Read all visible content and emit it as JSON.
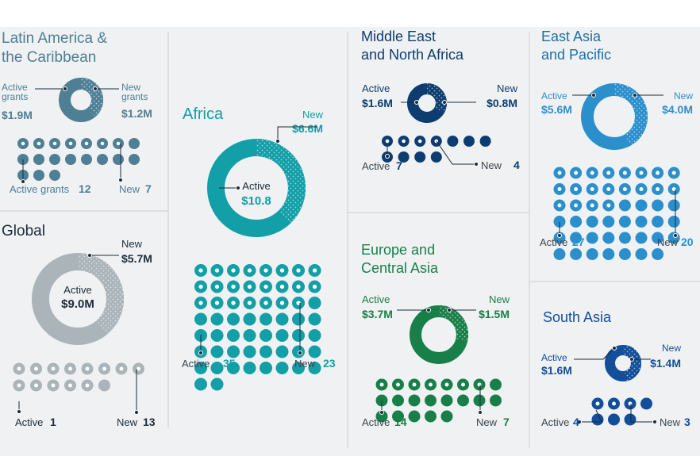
{
  "colors": {
    "background": "#eff1f2",
    "divider": "#d7dbde",
    "latam": "#4f7f95",
    "global": "#aab4b9",
    "africa": "#129fa8",
    "mena": "#0d3d70",
    "europe": "#197f49",
    "eap": "#2b8fcc",
    "eap_dark": "#1d6fa8",
    "sa": "#124e9a",
    "label_dark": "#1d2b3a",
    "label_grey": "#3b4650"
  },
  "chart_data": [
    {
      "type": "pie",
      "id": "latam",
      "title_lines": [
        "Latin America &",
        "the Caribbean"
      ],
      "slices": [
        {
          "name": "Active grants",
          "value": 1.9,
          "display": "$1.9M",
          "label_lines": [
            "Active",
            "grants"
          ]
        },
        {
          "name": "New grants",
          "value": 1.2,
          "display": "$1.2M",
          "label_lines": [
            "New",
            "grants"
          ]
        }
      ],
      "counts": {
        "active": 12,
        "new": 7,
        "active_label": "Active grants",
        "new_label": "New"
      }
    },
    {
      "type": "pie",
      "id": "global",
      "title_lines": [
        "Global"
      ],
      "slices": [
        {
          "name": "Active",
          "value": 9.0,
          "display": "$9.0M",
          "label_lines": [
            "Active"
          ]
        },
        {
          "name": "New",
          "value": 5.7,
          "display": "$5.7M",
          "label_lines": [
            "New"
          ]
        }
      ],
      "counts": {
        "active": 1,
        "new": 13,
        "active_label": "Active",
        "new_label": "New"
      }
    },
    {
      "type": "pie",
      "id": "africa",
      "title_lines": [
        "Africa"
      ],
      "slices": [
        {
          "name": "Active",
          "value": 10.8,
          "display": "$10.8",
          "label_lines": [
            "Active"
          ]
        },
        {
          "name": "New",
          "value": 6.6,
          "display": "$6.6M",
          "label_lines": [
            "New"
          ]
        }
      ],
      "counts": {
        "active": 35,
        "new": 23,
        "active_label": "Active",
        "new_label": "New"
      }
    },
    {
      "type": "pie",
      "id": "mena",
      "title_lines": [
        "Middle East",
        "and North Africa"
      ],
      "slices": [
        {
          "name": "Active",
          "value": 1.6,
          "display": "$1.6M",
          "label_lines": [
            "Active"
          ]
        },
        {
          "name": "New",
          "value": 0.8,
          "display": "$0.8M",
          "label_lines": [
            "New"
          ]
        }
      ],
      "counts": {
        "active": 7,
        "new": 4,
        "active_label": "Active",
        "new_label": "New"
      }
    },
    {
      "type": "pie",
      "id": "europe",
      "title_lines": [
        "Europe and",
        "Central Asia"
      ],
      "slices": [
        {
          "name": "Active",
          "value": 3.7,
          "display": "$3.7M",
          "label_lines": [
            "Active"
          ]
        },
        {
          "name": "New",
          "value": 1.5,
          "display": "$1.5M",
          "label_lines": [
            "New"
          ]
        }
      ],
      "counts": {
        "active": 14,
        "new": 7,
        "active_label": "Active",
        "new_label": "New"
      }
    },
    {
      "type": "pie",
      "id": "eap",
      "title_lines": [
        "East Asia",
        "and Pacific"
      ],
      "slices": [
        {
          "name": "Active",
          "value": 5.6,
          "display": "$5.6M",
          "label_lines": [
            "Active"
          ]
        },
        {
          "name": "New",
          "value": 4.0,
          "display": "$4.0M",
          "label_lines": [
            "New"
          ]
        }
      ],
      "counts": {
        "active": 27,
        "new": 20,
        "active_label": "Active",
        "new_label": "New"
      }
    },
    {
      "type": "pie",
      "id": "sa",
      "title_lines": [
        "South Asia"
      ],
      "slices": [
        {
          "name": "Active",
          "value": 1.6,
          "display": "$1.6M",
          "label_lines": [
            "Active"
          ]
        },
        {
          "name": "New",
          "value": 1.4,
          "display": "$1.4M",
          "label_lines": [
            "New"
          ]
        }
      ],
      "counts": {
        "active": 4,
        "new": 3,
        "active_label": "Active",
        "new_label": "New"
      }
    }
  ]
}
